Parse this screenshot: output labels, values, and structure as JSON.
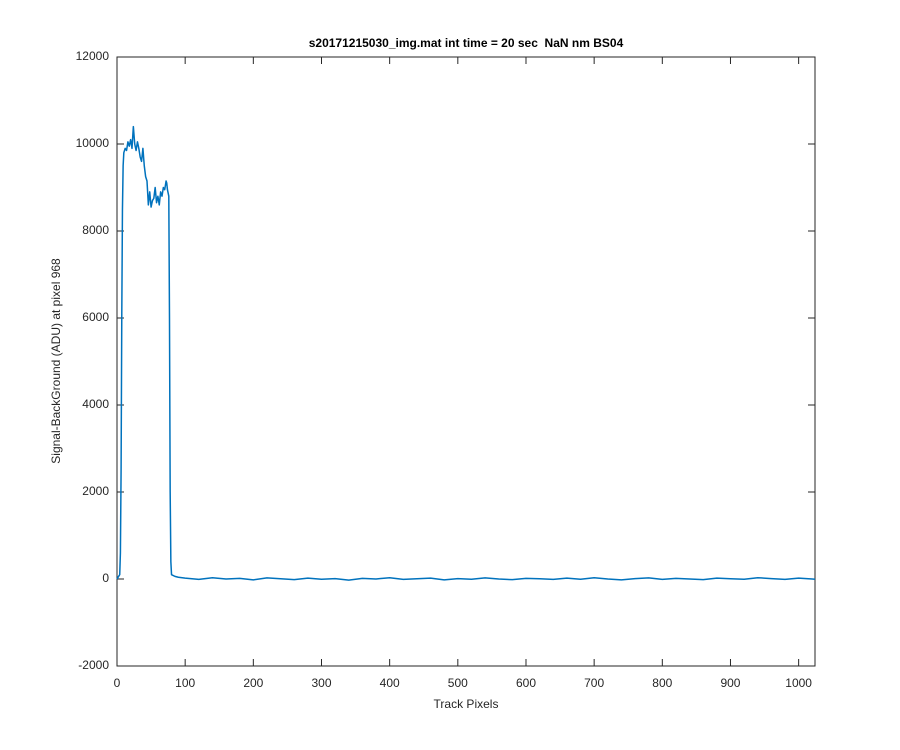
{
  "chart_data": {
    "type": "line",
    "title": "s20171215030_img.mat int time = 20 sec  NaN nm BS04",
    "x_label": "Track Pixels",
    "y_label": "Signal-BackGround (ADU) at pixel 968",
    "color": "#0072bd",
    "xlim": [
      0,
      1024
    ],
    "ylim": [
      -2000,
      12000
    ],
    "xticks": [
      0,
      100,
      200,
      300,
      400,
      500,
      600,
      700,
      800,
      900,
      1000
    ],
    "yticks": [
      -2000,
      0,
      2000,
      4000,
      6000,
      8000,
      10000,
      12000
    ],
    "x": [
      0,
      2,
      4,
      5,
      6,
      7,
      8,
      9,
      10,
      12,
      14,
      16,
      18,
      20,
      22,
      24,
      26,
      28,
      30,
      32,
      34,
      36,
      38,
      40,
      42,
      44,
      46,
      48,
      50,
      52,
      54,
      56,
      58,
      60,
      62,
      64,
      66,
      68,
      70,
      72,
      73,
      74,
      76,
      77,
      78,
      79,
      80,
      85,
      90,
      100,
      120,
      140,
      160,
      180,
      200,
      220,
      240,
      260,
      280,
      300,
      320,
      340,
      360,
      380,
      400,
      420,
      440,
      460,
      480,
      500,
      520,
      540,
      560,
      580,
      600,
      620,
      640,
      660,
      680,
      700,
      720,
      740,
      760,
      780,
      800,
      820,
      840,
      860,
      880,
      900,
      920,
      940,
      960,
      980,
      1000,
      1020,
      1024
    ],
    "values": [
      0,
      50,
      100,
      600,
      2500,
      6000,
      8500,
      9500,
      9800,
      9900,
      9850,
      10050,
      9950,
      10100,
      9900,
      10400,
      10000,
      9850,
      10050,
      9900,
      9700,
      9600,
      9900,
      9500,
      9250,
      9150,
      8600,
      8900,
      8550,
      8700,
      8750,
      9000,
      8650,
      8800,
      8600,
      8900,
      8800,
      9000,
      8950,
      9150,
      9100,
      8950,
      8800,
      6000,
      2000,
      400,
      100,
      60,
      40,
      20,
      -10,
      30,
      0,
      15,
      -20,
      25,
      5,
      -15,
      20,
      -5,
      10,
      -25,
      15,
      0,
      30,
      -10,
      5,
      20,
      -20,
      10,
      -5,
      25,
      0,
      -15,
      15,
      5,
      -10,
      20,
      -5,
      30,
      0,
      -20,
      10,
      25,
      -10,
      15,
      0,
      -15,
      20,
      5,
      -5,
      30,
      10,
      -10,
      20,
      0,
      -5
    ]
  }
}
